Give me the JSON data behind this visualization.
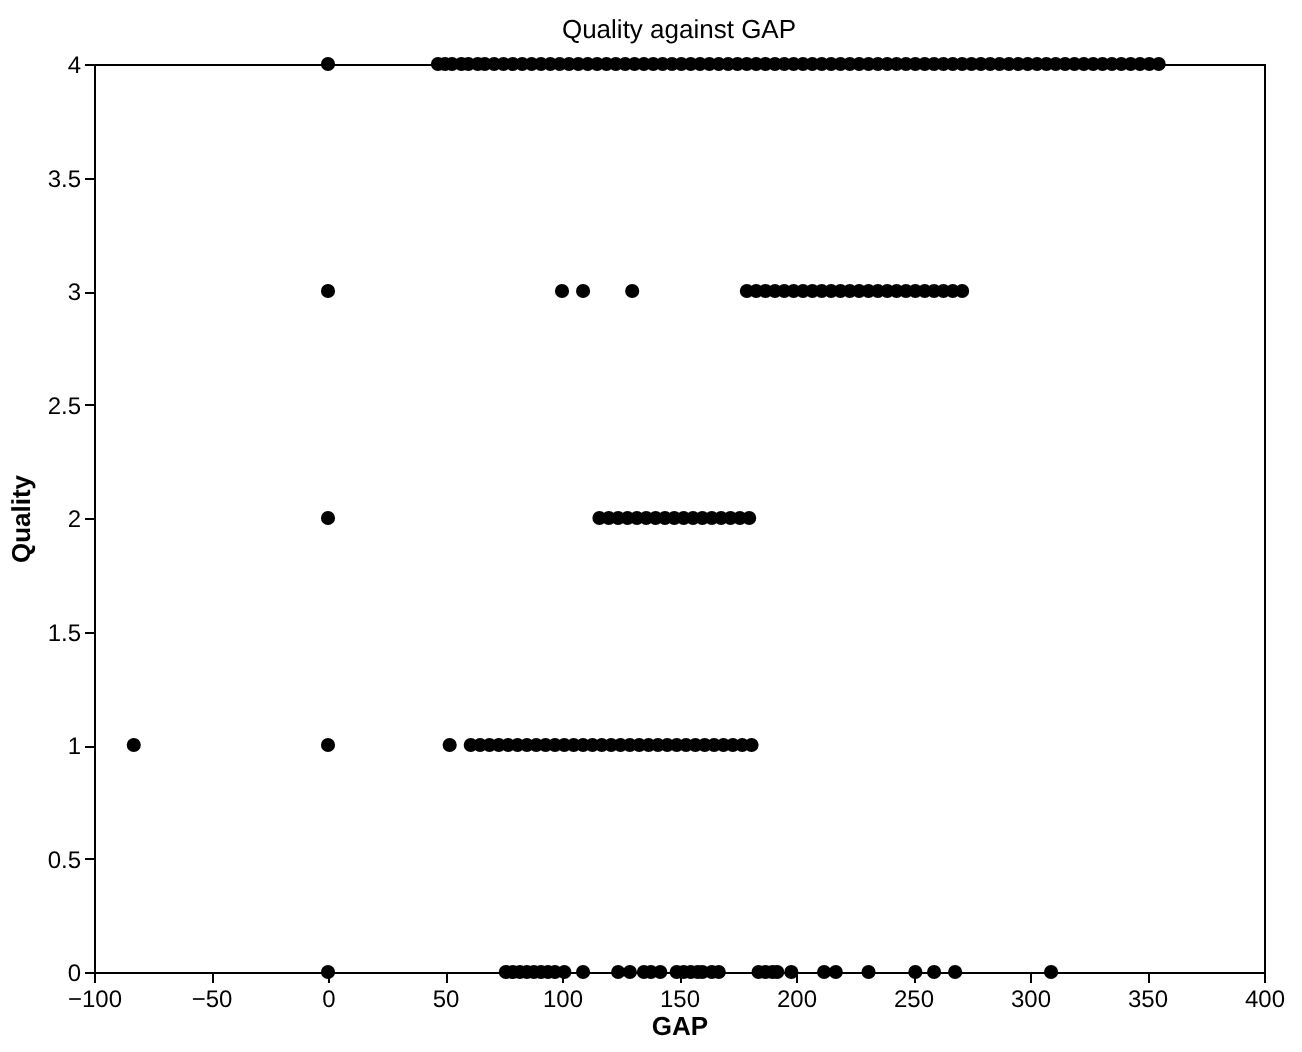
{
  "chart_data": {
    "type": "scatter",
    "title": "Quality against GAP",
    "xlabel": "GAP",
    "ylabel": "Quality",
    "xlim": [
      -100,
      400
    ],
    "ylim": [
      0,
      4
    ],
    "xticks": [
      -100,
      -50,
      0,
      50,
      100,
      150,
      200,
      250,
      300,
      350,
      400
    ],
    "yticks": [
      0,
      0.5,
      1,
      1.5,
      2,
      2.5,
      3,
      3.5,
      4
    ],
    "grid": false,
    "legend": false,
    "marker": "circle",
    "series": [
      {
        "color": "#000000",
        "x": [
          0,
          47,
          50,
          53,
          57,
          60,
          64,
          67,
          71,
          75,
          79,
          83,
          87,
          91,
          95,
          99,
          103,
          107,
          111,
          115,
          119,
          123,
          127,
          131,
          135,
          139,
          143,
          147,
          151,
          155,
          159,
          163,
          167,
          171,
          175,
          179,
          183,
          187,
          191,
          195,
          199,
          203,
          207,
          211,
          215,
          219,
          223,
          227,
          231,
          235,
          239,
          243,
          247,
          251,
          255,
          259,
          263,
          267,
          271,
          275,
          279,
          283,
          287,
          291,
          295,
          299,
          303,
          307,
          311,
          315,
          319,
          323,
          327,
          331,
          335,
          339,
          343,
          347,
          351,
          355
        ],
        "values": [
          4,
          4,
          4,
          4,
          4,
          4,
          4,
          4,
          4,
          4,
          4,
          4,
          4,
          4,
          4,
          4,
          4,
          4,
          4,
          4,
          4,
          4,
          4,
          4,
          4,
          4,
          4,
          4,
          4,
          4,
          4,
          4,
          4,
          4,
          4,
          4,
          4,
          4,
          4,
          4,
          4,
          4,
          4,
          4,
          4,
          4,
          4,
          4,
          4,
          4,
          4,
          4,
          4,
          4,
          4,
          4,
          4,
          4,
          4,
          4,
          4,
          4,
          4,
          4,
          4,
          4,
          4,
          4,
          4,
          4,
          4,
          4,
          4,
          4,
          4,
          4,
          4,
          4,
          4,
          4
        ]
      },
      {
        "color": "#000000",
        "x": [
          0,
          100,
          109,
          130,
          179,
          183,
          187,
          191,
          195,
          199,
          203,
          207,
          211,
          215,
          219,
          223,
          227,
          231,
          235,
          239,
          243,
          247,
          251,
          255,
          259,
          263,
          267,
          271
        ],
        "values": [
          3,
          3,
          3,
          3,
          3,
          3,
          3,
          3,
          3,
          3,
          3,
          3,
          3,
          3,
          3,
          3,
          3,
          3,
          3,
          3,
          3,
          3,
          3,
          3,
          3,
          3,
          3,
          3
        ]
      },
      {
        "color": "#000000",
        "x": [
          0,
          116,
          120,
          124,
          128,
          132,
          136,
          140,
          144,
          148,
          152,
          156,
          160,
          164,
          168,
          172,
          176,
          180
        ],
        "values": [
          2,
          2,
          2,
          2,
          2,
          2,
          2,
          2,
          2,
          2,
          2,
          2,
          2,
          2,
          2,
          2,
          2,
          2
        ]
      },
      {
        "color": "#000000",
        "x": [
          -83,
          0,
          52,
          61,
          65,
          69,
          73,
          77,
          81,
          85,
          89,
          93,
          97,
          101,
          105,
          109,
          113,
          117,
          121,
          125,
          129,
          133,
          137,
          141,
          145,
          149,
          153,
          157,
          161,
          165,
          169,
          173,
          177,
          181
        ],
        "values": [
          1,
          1,
          1,
          1,
          1,
          1,
          1,
          1,
          1,
          1,
          1,
          1,
          1,
          1,
          1,
          1,
          1,
          1,
          1,
          1,
          1,
          1,
          1,
          1,
          1,
          1,
          1,
          1,
          1,
          1,
          1,
          1,
          1,
          1
        ]
      },
      {
        "color": "#000000",
        "x": [
          0,
          76,
          79,
          82,
          85,
          88,
          91,
          94,
          97,
          101,
          109,
          124,
          129,
          135,
          138,
          142,
          149,
          152,
          155,
          158,
          160,
          164,
          167,
          184,
          187,
          190,
          192,
          198,
          212,
          217,
          231,
          251,
          259,
          268,
          309
        ],
        "values": [
          0,
          0,
          0,
          0,
          0,
          0,
          0,
          0,
          0,
          0,
          0,
          0,
          0,
          0,
          0,
          0,
          0,
          0,
          0,
          0,
          0,
          0,
          0,
          0,
          0,
          0,
          0,
          0,
          0,
          0,
          0,
          0,
          0,
          0,
          0
        ]
      }
    ]
  }
}
